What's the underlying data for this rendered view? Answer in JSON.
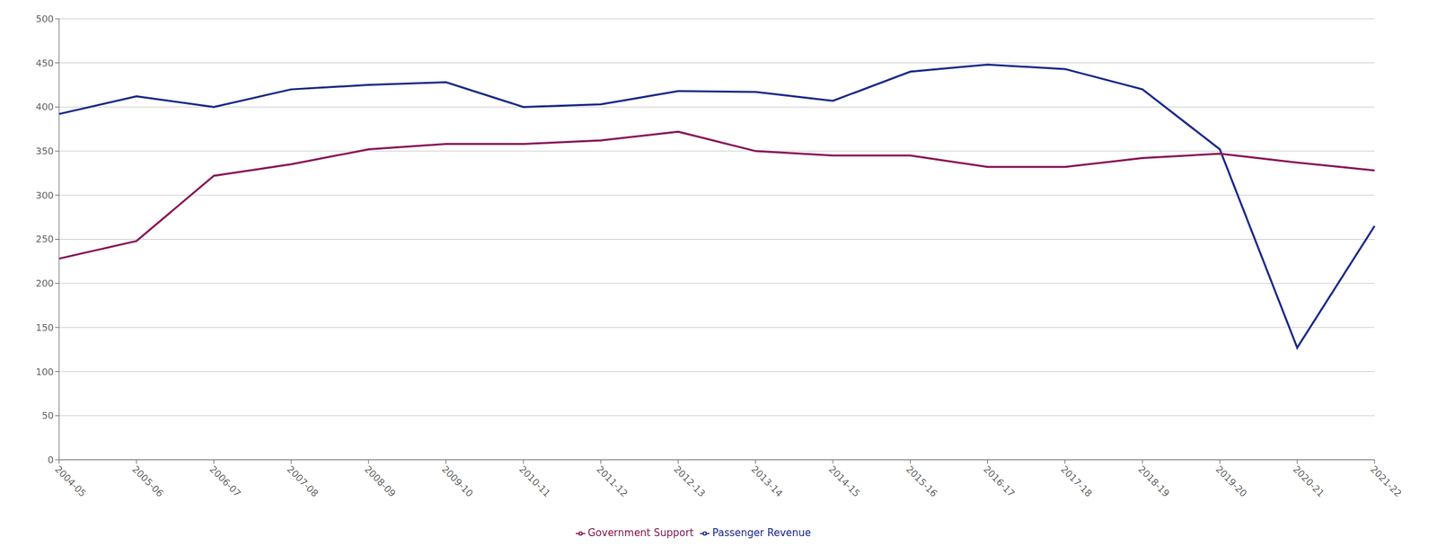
{
  "chart_data": {
    "type": "line",
    "categories": [
      "2004-05",
      "2005-06",
      "2006-07",
      "2007-08",
      "2008-09",
      "2009-10",
      "2010-11",
      "2011-12",
      "2012-13",
      "2013-14",
      "2014-15",
      "2015-16",
      "2016-17",
      "2017-18",
      "2018-19",
      "2019-20",
      "2020-21",
      "2021-22"
    ],
    "series": [
      {
        "name": "Passenger Revenue",
        "color": "#1F2D8A",
        "values": [
          392,
          412,
          400,
          420,
          425,
          428,
          400,
          403,
          418,
          417,
          407,
          440,
          448,
          443,
          420,
          352,
          127,
          265
        ]
      },
      {
        "name": "Government Support",
        "color": "#8B1A5A",
        "values": [
          228,
          248,
          322,
          335,
          352,
          358,
          358,
          362,
          372,
          350,
          345,
          345,
          332,
          332,
          342,
          347,
          337,
          328
        ]
      }
    ],
    "ylim": [
      0,
      500
    ],
    "yticks": [
      0,
      50,
      100,
      150,
      200,
      250,
      300,
      350,
      400,
      450,
      500
    ],
    "grid": true,
    "legend": "bottom"
  }
}
